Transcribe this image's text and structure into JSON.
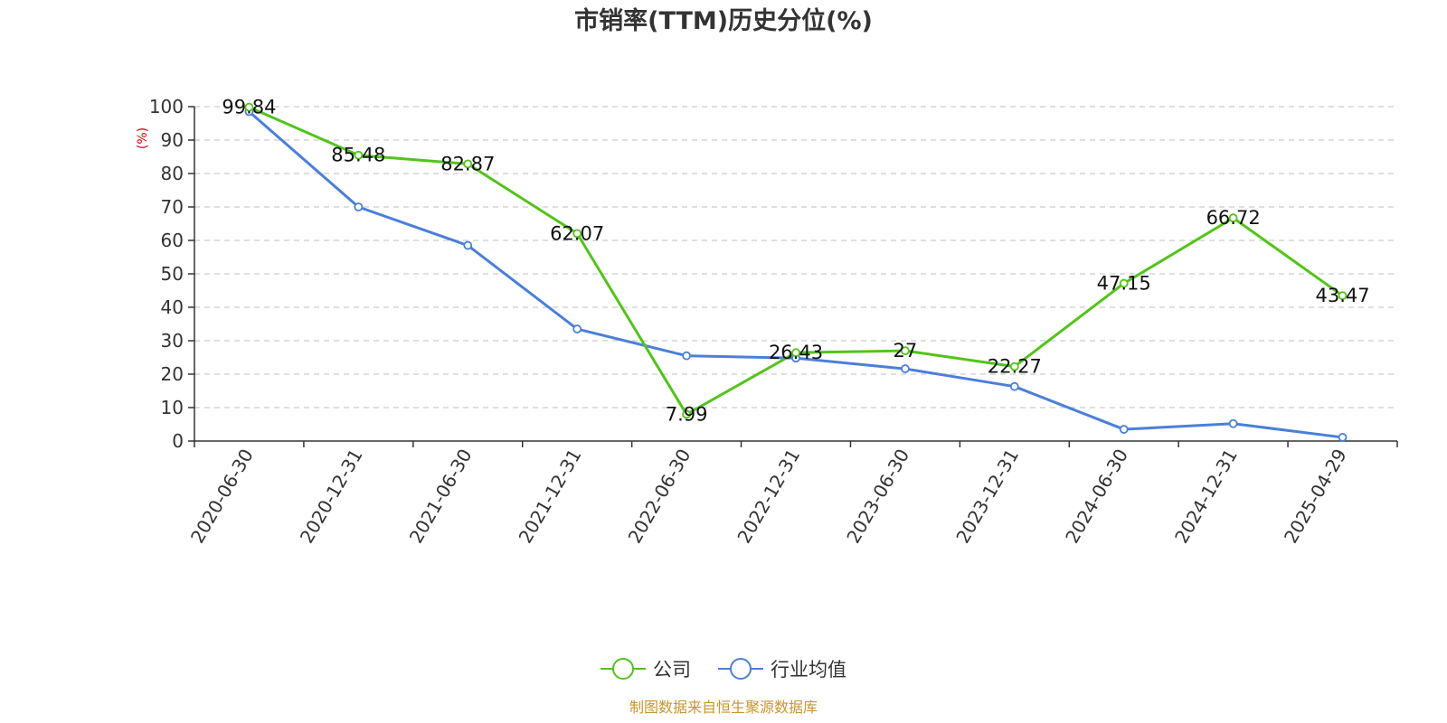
{
  "chart_data": {
    "type": "line",
    "title": "市销率(TTM)历史分位(%)",
    "ylabel": "(%)",
    "xlabel": "",
    "ylim": [
      0,
      100
    ],
    "yticks": [
      0,
      10,
      20,
      30,
      40,
      50,
      60,
      70,
      80,
      90,
      100
    ],
    "grid": true,
    "legend_position": "bottom-center",
    "categories": [
      "2020-06-30",
      "2020-12-31",
      "2021-06-30",
      "2021-12-31",
      "2022-06-30",
      "2022-12-31",
      "2023-06-30",
      "2023-12-31",
      "2024-06-30",
      "2024-12-31",
      "2025-04-29"
    ],
    "series": [
      {
        "name": "公司",
        "color": "#52c41a",
        "values": [
          99.84,
          85.48,
          82.87,
          62.07,
          7.99,
          26.43,
          27,
          22.27,
          47.15,
          66.72,
          43.47
        ],
        "labels": [
          "99.84",
          "85.48",
          "82.87",
          "62.07",
          "7.99",
          "26.43",
          "27",
          "22.27",
          "47.15",
          "66.72",
          "43.47"
        ]
      },
      {
        "name": "行业均值",
        "color": "#4a7fdb",
        "values": [
          98.5,
          70,
          58.5,
          33.5,
          25.5,
          24.8,
          21.6,
          16.3,
          3.5,
          5.2,
          1.1
        ]
      }
    ],
    "unit_color": "#e0000f",
    "source_text": "制图数据来自恒生聚源数据库",
    "source_color": "#c8962d"
  }
}
